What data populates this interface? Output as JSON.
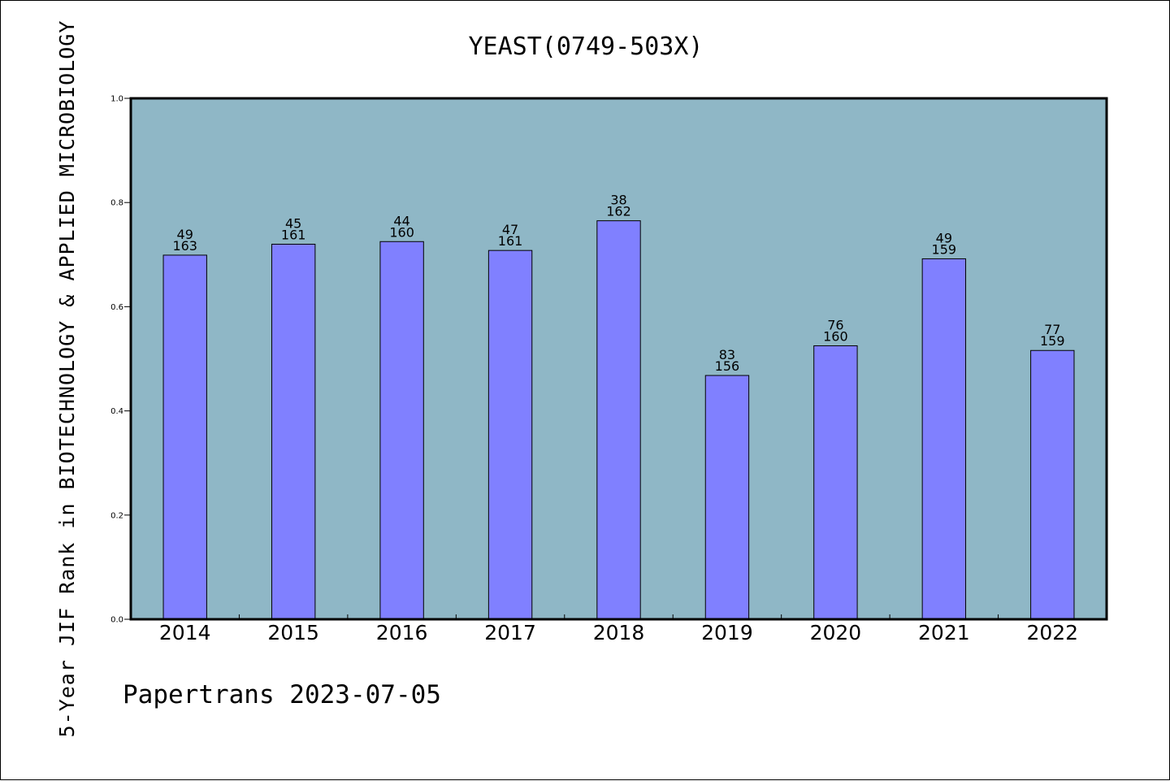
{
  "chart_data": {
    "type": "bar",
    "title": "YEAST(0749-503X)",
    "ylabel": "5-Year JIF Rank in BIOTECHNOLOGY & APPLIED MICROBIOLOGY",
    "xlabel": "",
    "ylim": [
      0,
      1.0
    ],
    "yticks": [
      "0.0",
      "0.2",
      "0.4",
      "0.6",
      "0.8",
      "1.0"
    ],
    "categories": [
      "2014",
      "2015",
      "2016",
      "2017",
      "2018",
      "2019",
      "2020",
      "2021",
      "2022"
    ],
    "values": [
      0.699,
      0.72,
      0.725,
      0.708,
      0.765,
      0.468,
      0.525,
      0.692,
      0.516
    ],
    "rank_labels": [
      "49",
      "45",
      "44",
      "47",
      "38",
      "83",
      "76",
      "49",
      "77"
    ],
    "total_labels": [
      "163",
      "161",
      "160",
      "161",
      "162",
      "156",
      "160",
      "159",
      "159"
    ],
    "grid": false,
    "legend": "none",
    "colors": {
      "plot_background": "#8fb7c6",
      "bar_fill": "#8080ff",
      "bar_stroke": "#000000"
    }
  },
  "footer": {
    "text": "Papertrans 2023-07-05"
  }
}
